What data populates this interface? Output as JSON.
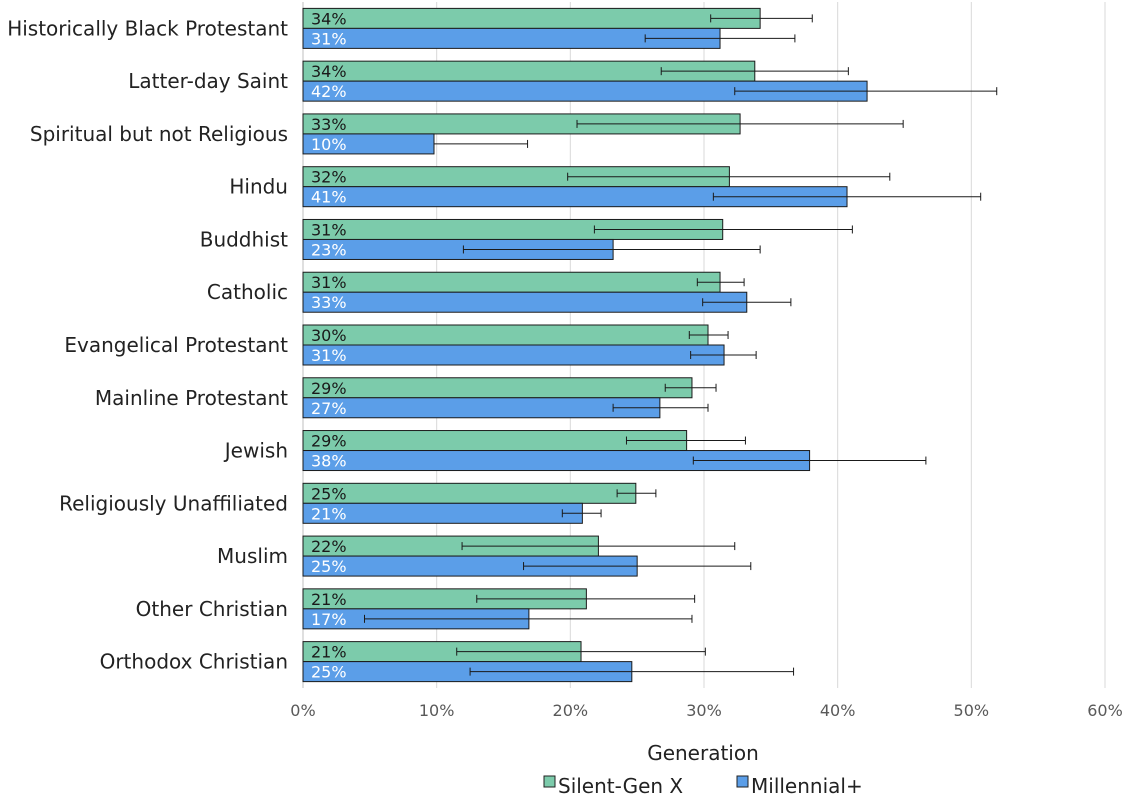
{
  "chart_data": {
    "type": "bar",
    "orientation": "horizontal",
    "categories": [
      "Historically Black Protestant",
      "Latter-day Saint",
      "Spiritual but not Religious",
      "Hindu",
      "Buddhist",
      "Catholic",
      "Evangelical Protestant",
      "Mainline Protestant",
      "Jewish",
      "Religiously Unaffiliated",
      "Muslim",
      "Other Christian",
      "Orthodox Christian"
    ],
    "series": [
      {
        "name": "Silent-Gen X",
        "color": "#7ccbab",
        "values": [
          34.2,
          33.8,
          32.7,
          31.9,
          31.4,
          31.2,
          30.3,
          29.1,
          28.7,
          24.9,
          22.1,
          21.2,
          20.8
        ],
        "labels": [
          "34%",
          "34%",
          "33%",
          "32%",
          "31%",
          "31%",
          "30%",
          "29%",
          "29%",
          "25%",
          "22%",
          "21%",
          "21%"
        ],
        "error_low": [
          30.5,
          26.8,
          20.5,
          19.8,
          21.8,
          29.5,
          28.9,
          27.1,
          24.2,
          23.5,
          11.9,
          13.0,
          11.5
        ],
        "error_high": [
          38.1,
          40.8,
          44.9,
          43.9,
          41.1,
          33.0,
          31.8,
          30.9,
          33.1,
          26.4,
          32.3,
          29.3,
          30.1
        ]
      },
      {
        "name": "Millennial+",
        "color": "#5b9ee8",
        "values": [
          31.2,
          42.2,
          9.8,
          40.7,
          23.2,
          33.2,
          31.5,
          26.7,
          37.9,
          20.9,
          25.0,
          16.9,
          24.6
        ],
        "labels": [
          "31%",
          "42%",
          "10%",
          "41%",
          "23%",
          "33%",
          "31%",
          "27%",
          "38%",
          "21%",
          "25%",
          "17%",
          "25%"
        ],
        "error_low": [
          25.6,
          32.3,
          9.8,
          30.7,
          12.0,
          29.9,
          29.0,
          23.2,
          29.2,
          19.4,
          16.5,
          4.6,
          12.5
        ],
        "error_high": [
          36.8,
          51.9,
          16.8,
          50.7,
          34.2,
          36.5,
          33.9,
          30.3,
          46.6,
          22.3,
          33.5,
          29.1,
          36.7
        ]
      }
    ],
    "xlim": [
      0,
      60
    ],
    "xticks": [
      "0%",
      "10%",
      "20%",
      "30%",
      "40%",
      "50%",
      "60%"
    ],
    "grid": "vertical",
    "legend": {
      "title": "Generation",
      "placement": "bottom",
      "entries": [
        "Silent-Gen X",
        "Millennial+"
      ]
    }
  }
}
